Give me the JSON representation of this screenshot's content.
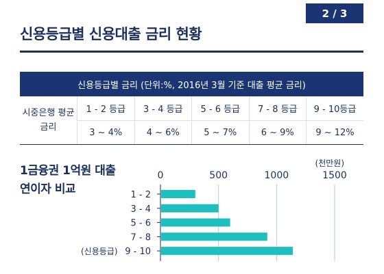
{
  "header": {
    "page_indicator": "2 / 3",
    "title": "신용등급별 신용대출 금리 현황"
  },
  "rate_table": {
    "caption": "신용등급별 금리 (단위:%, 2016년 3월 기준 대출 평균 금리)",
    "row_header": "시중은행 평균금리",
    "columns": [
      {
        "grade": "1 - 2 등급",
        "range": "3 ~ 4%"
      },
      {
        "grade": "3 - 4 등급",
        "range": "4 ~ 6%"
      },
      {
        "grade": "5 - 6 등급",
        "range": "5 ~ 7%"
      },
      {
        "grade": "7 - 8 등급",
        "range": "6 ~ 9%"
      },
      {
        "grade": "9 - 10등급",
        "range": "9 ~ 12%"
      }
    ]
  },
  "chart_title": {
    "line1": "1금융권 1억원 대출",
    "line2": "연이자 비교"
  },
  "colors": {
    "navy": "#1a3572",
    "bar": "#1fbfbf",
    "gridline": "#b7c7d8"
  },
  "chart_data": {
    "type": "bar",
    "orientation": "horizontal",
    "categories": [
      "1 - 2",
      "3 - 4",
      "5 - 6",
      "7 - 8",
      "9 - 10"
    ],
    "values": [
      300,
      500,
      600,
      920,
      1140
    ],
    "unit": "(천만원)",
    "category_axis_label": "(신용등급)",
    "xlim": [
      0,
      1500
    ],
    "ticks": [
      0,
      500,
      1000,
      1500
    ],
    "grid": true
  }
}
